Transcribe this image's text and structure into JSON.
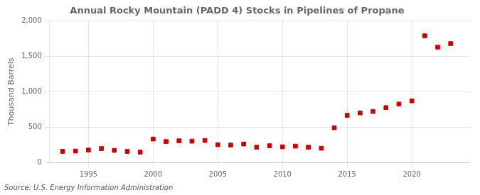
{
  "chart_data": {
    "type": "scatter",
    "title": "Annual Rocky Mountain (PADD 4) Stocks in Pipelines of Propane",
    "ylabel": "Thousand Barrels",
    "annotation": "Source: U.S. Energy Information Administration",
    "x": [
      1993,
      1994,
      1995,
      1996,
      1997,
      1998,
      1999,
      2000,
      2001,
      2002,
      2003,
      2004,
      2005,
      2006,
      2007,
      2008,
      2009,
      2010,
      2011,
      2012,
      2013,
      2014,
      2015,
      2016,
      2017,
      2018,
      2019,
      2020,
      2021,
      2022,
      2023
    ],
    "values": [
      155,
      160,
      175,
      195,
      170,
      155,
      145,
      330,
      295,
      305,
      300,
      310,
      250,
      245,
      260,
      215,
      235,
      220,
      230,
      215,
      200,
      490,
      665,
      700,
      720,
      775,
      825,
      870,
      1790,
      1630,
      1680
    ],
    "color": "#cc0000",
    "marker": "square",
    "xlim": [
      1992,
      2024.5
    ],
    "xticks": [
      1995,
      2000,
      2005,
      2010,
      2015,
      2020
    ],
    "ylim": [
      0,
      2000
    ],
    "yticks": [
      0,
      500,
      {
        "value": 1000,
        "label": "1,000"
      },
      {
        "value": 1500,
        "label": "1,500"
      },
      {
        "value": 2000,
        "label": "2,000"
      }
    ],
    "grid": true
  }
}
